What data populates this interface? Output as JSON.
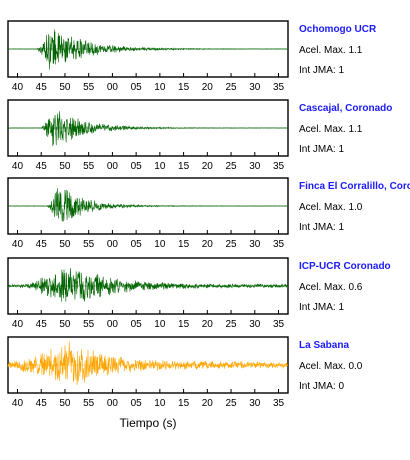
{
  "chart_data": {
    "type": "line",
    "xlabel": "Tiempo (s)",
    "x_tick_labels": [
      "40",
      "45",
      "50",
      "55",
      "00",
      "05",
      "10",
      "15",
      "20",
      "25",
      "30",
      "35"
    ],
    "xlim": [
      38,
      37
    ],
    "panels": [
      {
        "name": "Ochomogo UCR",
        "accel_label": "Acel. Max. 1.1",
        "int_label": "Int JMA: 1",
        "color": "#006400",
        "onset": 44.0,
        "peak": 47.0,
        "decay": 7.0,
        "amplitude": 0.97,
        "noise": 0.01
      },
      {
        "name": "Cascajal, Coronado",
        "accel_label": "Acel. Max. 1.1",
        "int_label": "Int JMA: 1",
        "color": "#006400",
        "onset": 45.0,
        "peak": 47.5,
        "decay": 6.0,
        "amplitude": 0.95,
        "noise": 0.01
      },
      {
        "name": "Finca El Corralillo, Coronado",
        "accel_label": "Acel. Max. 1.0",
        "int_label": "Int JMA: 1",
        "color": "#006400",
        "onset": 46.0,
        "peak": 49.0,
        "decay": 5.0,
        "amplitude": 0.95,
        "noise": 0.01
      },
      {
        "name": "ICP-UCR Coronado",
        "accel_label": "Acel. Max. 0.6",
        "int_label": "Int JMA: 1",
        "color": "#006400",
        "onset": 41.0,
        "peak": 51.0,
        "decay": 8.0,
        "amplitude": 0.95,
        "noise": 0.07
      },
      {
        "name": "La Sabana",
        "accel_label": "Acel. Max. 0.0",
        "int_label": "Int JMA: 0",
        "color": "#ffa500",
        "onset": 38.0,
        "peak": 51.0,
        "decay": 8.0,
        "amplitude": 0.98,
        "noise": 0.14
      }
    ]
  }
}
